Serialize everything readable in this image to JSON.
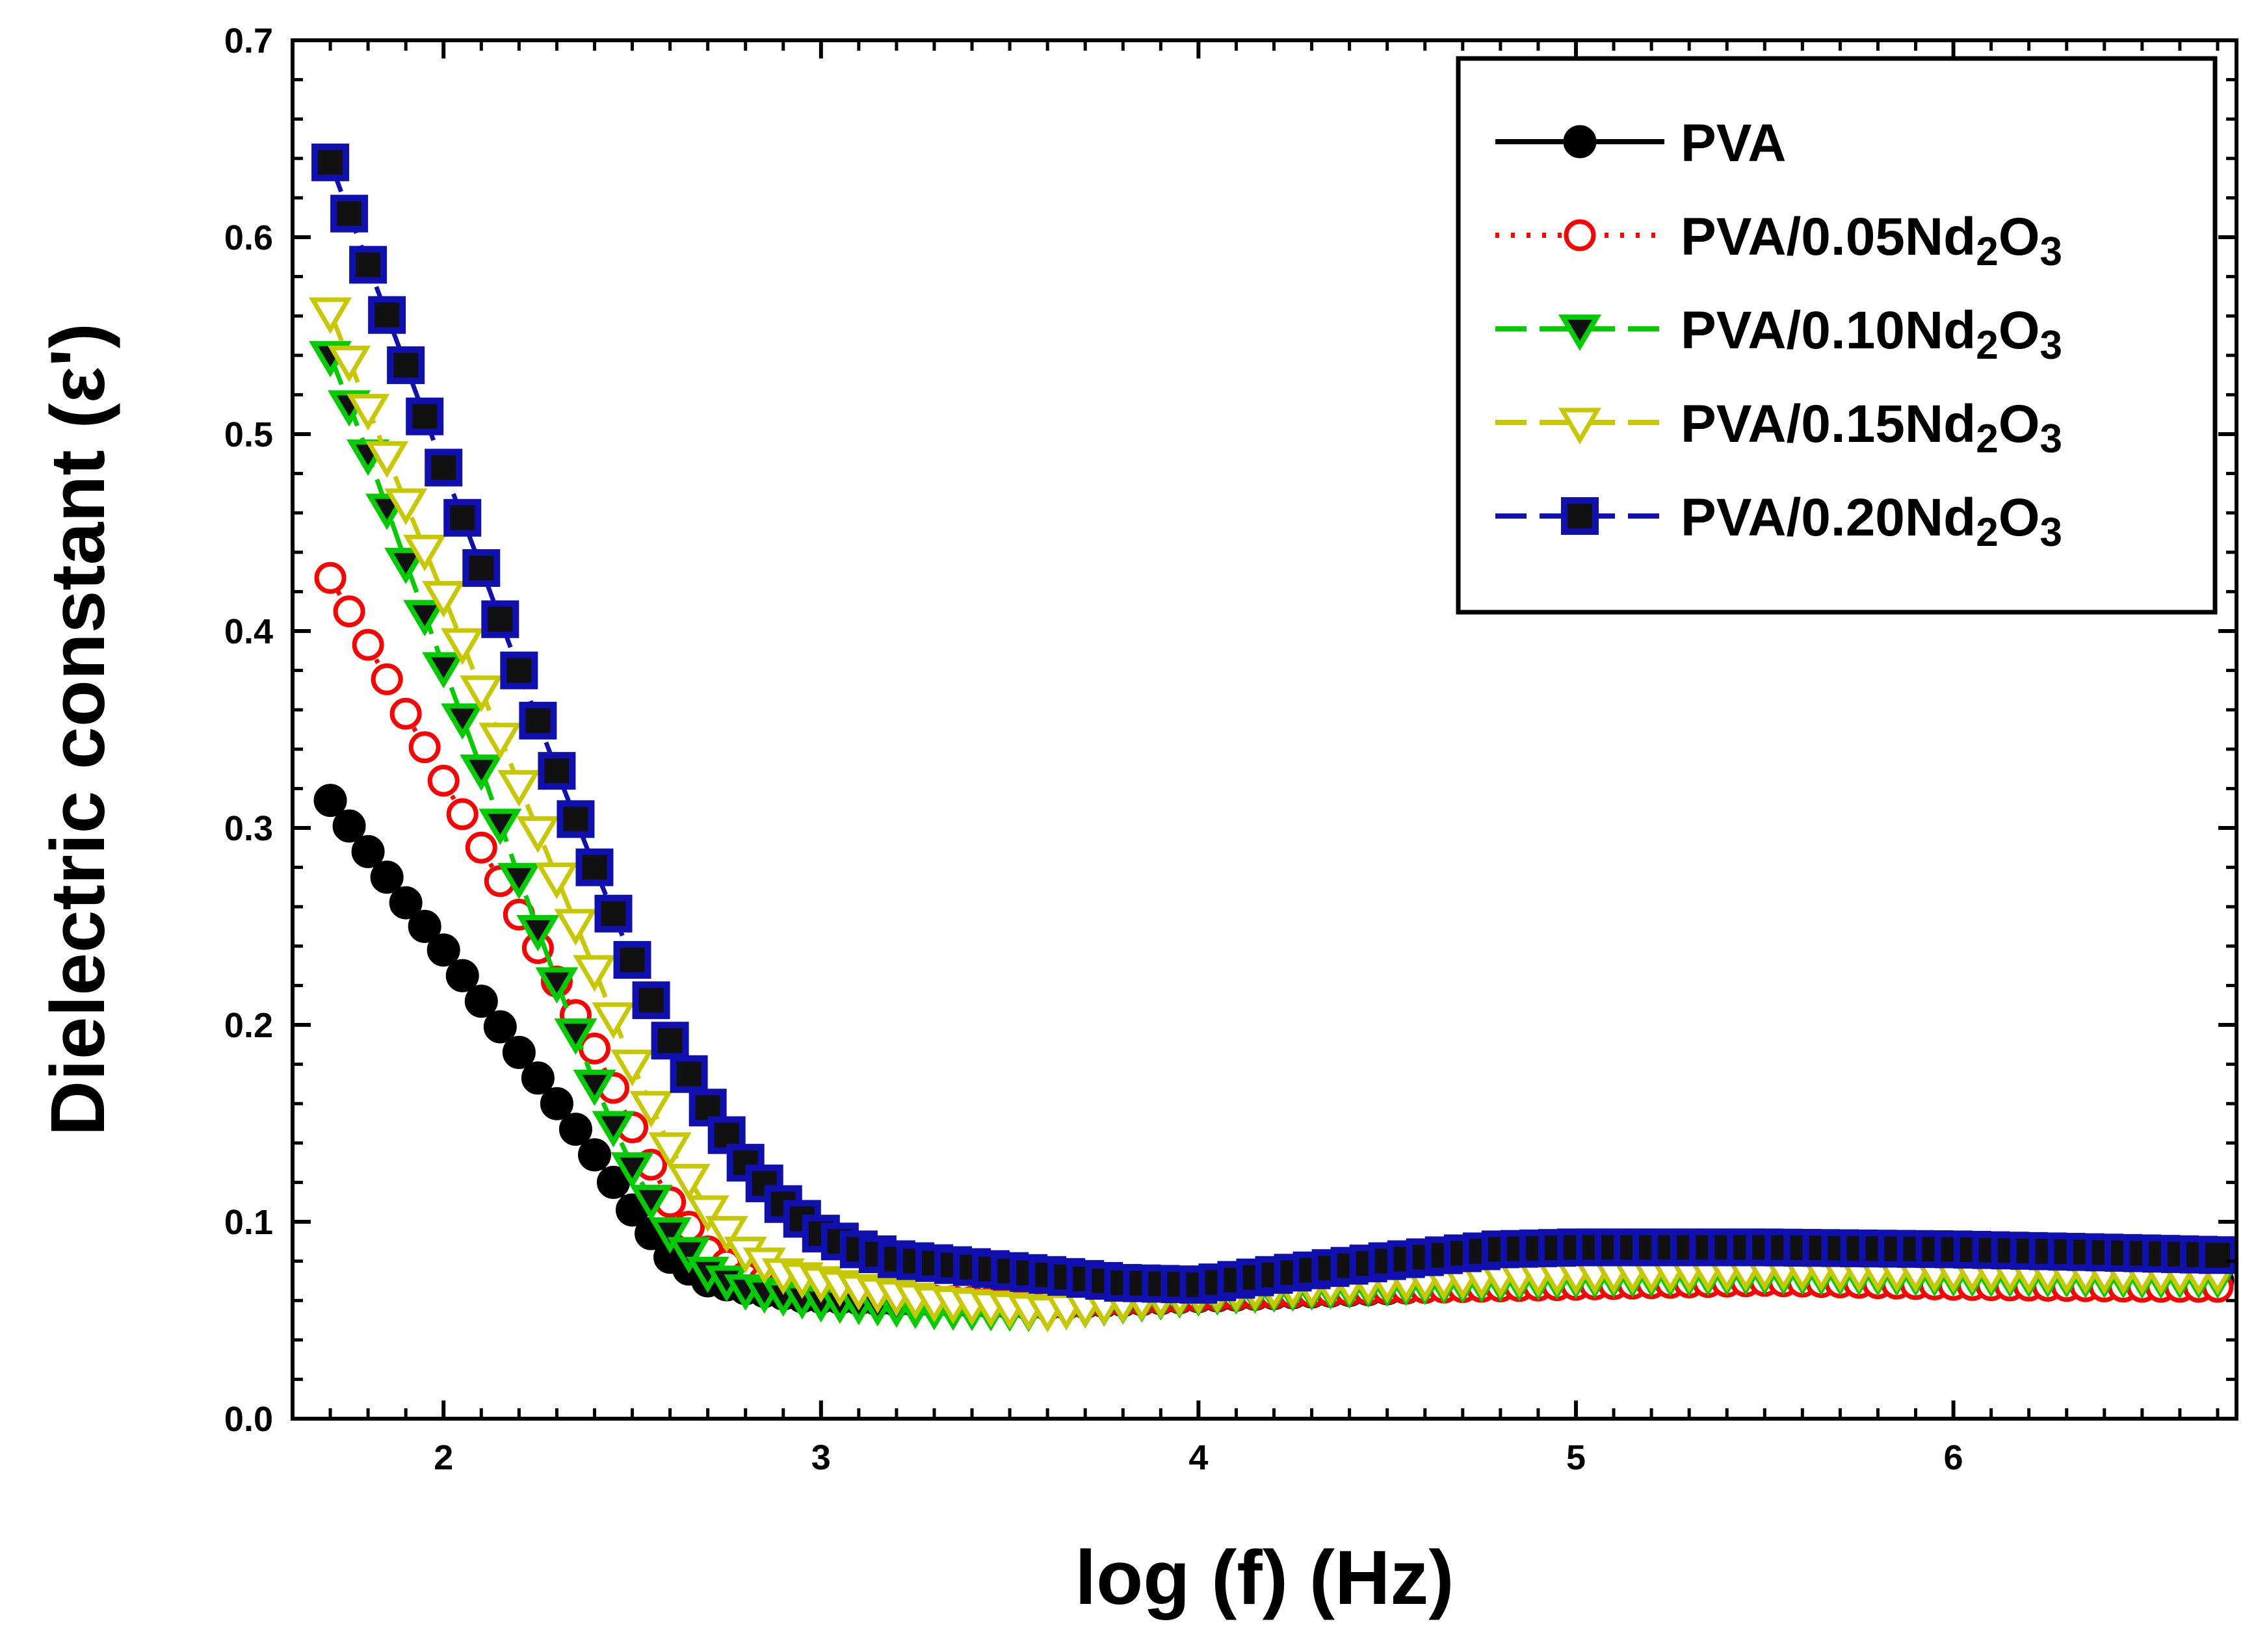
{
  "chart_data": {
    "type": "line",
    "title": "",
    "xlabel": "log (f) (Hz)",
    "ylabel": "Dielectric constant (ε')",
    "xlim": [
      1.6,
      6.75
    ],
    "ylim": [
      0.0,
      0.7
    ],
    "xticks": [
      2,
      3,
      4,
      5,
      6
    ],
    "yticks": [
      0.0,
      0.1,
      0.2,
      0.3,
      0.4,
      0.5,
      0.6,
      0.7
    ],
    "ytick_labels": [
      "0.0",
      "0.1",
      "0.2",
      "0.3",
      "0.4",
      "0.5",
      "0.6",
      "0.7"
    ],
    "legend_position": "top-right",
    "marker_step": 0.05,
    "series": [
      {
        "name": "PVA",
        "legend_base": "PVA",
        "legend_sub": "",
        "legend_tail": "",
        "color": "#000000",
        "dash": "",
        "marker": "filled-circle",
        "points": [
          [
            1.7,
            0.314
          ],
          [
            1.8,
            0.288
          ],
          [
            1.9,
            0.262
          ],
          [
            2.0,
            0.238
          ],
          [
            2.1,
            0.212
          ],
          [
            2.2,
            0.186
          ],
          [
            2.3,
            0.16
          ],
          [
            2.4,
            0.134
          ],
          [
            2.5,
            0.106
          ],
          [
            2.6,
            0.082
          ],
          [
            2.7,
            0.07
          ],
          [
            2.8,
            0.066
          ],
          [
            2.95,
            0.062
          ],
          [
            3.2,
            0.06
          ],
          [
            3.6,
            0.058
          ],
          [
            4.0,
            0.062
          ],
          [
            4.5,
            0.066
          ],
          [
            5.0,
            0.07
          ],
          [
            5.5,
            0.072
          ],
          [
            6.0,
            0.07
          ],
          [
            6.5,
            0.07
          ],
          [
            6.72,
            0.07
          ]
        ]
      },
      {
        "name": "PVA/0.05Nd2O3",
        "legend_base": "PVA/0.05Nd",
        "legend_sub": "2",
        "legend_tail": "O",
        "legend_sub2": "3",
        "color": "#ff0000",
        "dash": "6 18",
        "marker": "open-circle",
        "points": [
          [
            1.7,
            0.427
          ],
          [
            1.8,
            0.393
          ],
          [
            1.9,
            0.358
          ],
          [
            2.0,
            0.324
          ],
          [
            2.1,
            0.29
          ],
          [
            2.2,
            0.256
          ],
          [
            2.3,
            0.222
          ],
          [
            2.4,
            0.188
          ],
          [
            2.5,
            0.148
          ],
          [
            2.6,
            0.11
          ],
          [
            2.7,
            0.085
          ],
          [
            2.8,
            0.072
          ],
          [
            3.0,
            0.064
          ],
          [
            3.3,
            0.06
          ],
          [
            3.6,
            0.058
          ],
          [
            4.0,
            0.062
          ],
          [
            4.5,
            0.066
          ],
          [
            5.0,
            0.068
          ],
          [
            5.5,
            0.07
          ],
          [
            6.0,
            0.068
          ],
          [
            6.5,
            0.067
          ],
          [
            6.72,
            0.067
          ]
        ]
      },
      {
        "name": "PVA/0.10Nd2O3",
        "legend_base": "PVA/0.10Nd",
        "legend_sub": "2",
        "legend_tail": "O",
        "legend_sub2": "3",
        "color": "#00cc00",
        "dash": "48 20",
        "marker": "filled-down-triangle",
        "points": [
          [
            1.7,
            0.54
          ],
          [
            1.8,
            0.49
          ],
          [
            1.9,
            0.435
          ],
          [
            2.0,
            0.382
          ],
          [
            2.1,
            0.33
          ],
          [
            2.2,
            0.275
          ],
          [
            2.3,
            0.222
          ],
          [
            2.4,
            0.17
          ],
          [
            2.5,
            0.128
          ],
          [
            2.6,
            0.095
          ],
          [
            2.7,
            0.075
          ],
          [
            2.8,
            0.066
          ],
          [
            3.0,
            0.06
          ],
          [
            3.3,
            0.056
          ],
          [
            3.6,
            0.055
          ],
          [
            4.0,
            0.063
          ],
          [
            4.5,
            0.068
          ],
          [
            5.0,
            0.072
          ],
          [
            5.5,
            0.074
          ],
          [
            6.0,
            0.073
          ],
          [
            6.5,
            0.072
          ],
          [
            6.72,
            0.072
          ]
        ]
      },
      {
        "name": "PVA/0.15Nd2O3",
        "legend_base": "PVA/0.15Nd",
        "legend_sub": "2",
        "legend_tail": "O",
        "legend_sub2": "3",
        "color": "#c8c800",
        "dash": "48 20",
        "marker": "open-down-triangle",
        "points": [
          [
            1.7,
            0.562
          ],
          [
            1.8,
            0.513
          ],
          [
            1.9,
            0.465
          ],
          [
            2.0,
            0.418
          ],
          [
            2.1,
            0.37
          ],
          [
            2.2,
            0.322
          ],
          [
            2.3,
            0.275
          ],
          [
            2.4,
            0.228
          ],
          [
            2.5,
            0.18
          ],
          [
            2.6,
            0.138
          ],
          [
            2.7,
            0.106
          ],
          [
            2.8,
            0.085
          ],
          [
            2.9,
            0.074
          ],
          [
            3.1,
            0.066
          ],
          [
            3.3,
            0.06
          ],
          [
            3.6,
            0.055
          ],
          [
            4.0,
            0.064
          ],
          [
            4.5,
            0.07
          ],
          [
            5.0,
            0.074
          ],
          [
            5.5,
            0.076
          ],
          [
            6.0,
            0.075
          ],
          [
            6.5,
            0.074
          ],
          [
            6.72,
            0.074
          ]
        ]
      },
      {
        "name": "PVA/0.20Nd2O3",
        "legend_base": "PVA/0.20Nd",
        "legend_sub": "2",
        "legend_tail": "O",
        "legend_sub2": "3",
        "color": "#1010b0",
        "dash": "48 20",
        "marker": "square-black-center",
        "points": [
          [
            1.7,
            0.638
          ],
          [
            1.8,
            0.586
          ],
          [
            1.9,
            0.535
          ],
          [
            2.0,
            0.483
          ],
          [
            2.1,
            0.432
          ],
          [
            2.2,
            0.38
          ],
          [
            2.3,
            0.329
          ],
          [
            2.4,
            0.28
          ],
          [
            2.5,
            0.233
          ],
          [
            2.6,
            0.192
          ],
          [
            2.7,
            0.158
          ],
          [
            2.8,
            0.13
          ],
          [
            2.9,
            0.109
          ],
          [
            3.0,
            0.094
          ],
          [
            3.1,
            0.086
          ],
          [
            3.2,
            0.081
          ],
          [
            3.4,
            0.077
          ],
          [
            3.6,
            0.073
          ],
          [
            3.8,
            0.069
          ],
          [
            4.0,
            0.068
          ],
          [
            4.2,
            0.073
          ],
          [
            4.5,
            0.08
          ],
          [
            4.8,
            0.086
          ],
          [
            5.0,
            0.087
          ],
          [
            5.5,
            0.087
          ],
          [
            6.0,
            0.086
          ],
          [
            6.5,
            0.084
          ],
          [
            6.72,
            0.083
          ]
        ]
      }
    ]
  }
}
